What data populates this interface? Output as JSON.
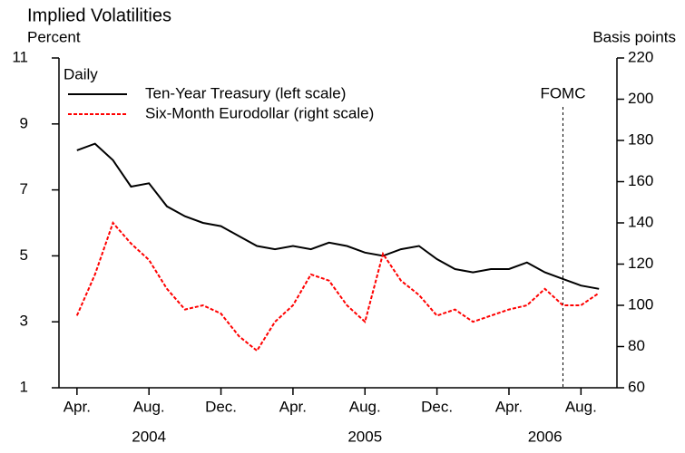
{
  "chart_data": {
    "type": "line",
    "title": "Implied Volatilities",
    "ylabel": "Percent",
    "y2label": "Basis points",
    "legend_title": "Daily",
    "legend": "upper left",
    "x": [
      "2004-04",
      "2004-05",
      "2004-06",
      "2004-07",
      "2004-08",
      "2004-09",
      "2004-10",
      "2004-11",
      "2004-12",
      "2005-01",
      "2005-02",
      "2005-03",
      "2005-04",
      "2005-05",
      "2005-06",
      "2005-07",
      "2005-08",
      "2005-09",
      "2005-10",
      "2005-11",
      "2005-12",
      "2006-01",
      "2006-02",
      "2006-03",
      "2006-04",
      "2006-05",
      "2006-06",
      "2006-07",
      "2006-08",
      "2006-09"
    ],
    "xlim": [
      "2004-03",
      "2006-10"
    ],
    "xticks": [
      {
        "value": "2004-04",
        "label": "Apr."
      },
      {
        "value": "2004-08",
        "label": "Aug."
      },
      {
        "value": "2004-12",
        "label": "Dec."
      },
      {
        "value": "2005-04",
        "label": "Apr."
      },
      {
        "value": "2005-08",
        "label": "Aug."
      },
      {
        "value": "2005-12",
        "label": "Dec."
      },
      {
        "value": "2006-04",
        "label": "Apr."
      },
      {
        "value": "2006-08",
        "label": "Aug."
      }
    ],
    "year_labels": [
      {
        "value": "2004-08",
        "label": "2004"
      },
      {
        "value": "2005-08",
        "label": "2005"
      },
      {
        "value": "2006-06",
        "label": "2006"
      }
    ],
    "ylim": [
      1,
      11
    ],
    "yticks": [
      1,
      3,
      5,
      7,
      9,
      11
    ],
    "y2lim": [
      60,
      220
    ],
    "y2ticks": [
      60,
      80,
      100,
      120,
      140,
      160,
      180,
      200,
      220
    ],
    "series": [
      {
        "name": "Ten-Year Treasury (left scale)",
        "color": "#000000",
        "values": [
          8.2,
          8.4,
          7.9,
          7.1,
          7.2,
          6.5,
          6.2,
          6.0,
          5.9,
          5.6,
          5.3,
          5.2,
          5.3,
          5.2,
          5.4,
          5.3,
          5.1,
          5.0,
          5.2,
          5.3,
          4.9,
          4.6,
          4.5,
          4.6,
          4.6,
          4.8,
          4.5,
          4.3,
          4.1,
          4.0
        ]
      },
      {
        "name": "Six-Month Eurodollar (right scale)",
        "color": "#ff0000",
        "axis": "y2",
        "values": [
          95,
          115,
          140,
          130,
          122,
          108,
          98,
          100,
          96,
          85,
          78,
          92,
          100,
          115,
          112,
          100,
          92,
          125,
          112,
          105,
          95,
          98,
          92,
          95,
          98,
          100,
          108,
          100,
          100,
          106
        ]
      }
    ],
    "annotation": {
      "label": "FOMC",
      "x": "2006-07"
    }
  }
}
